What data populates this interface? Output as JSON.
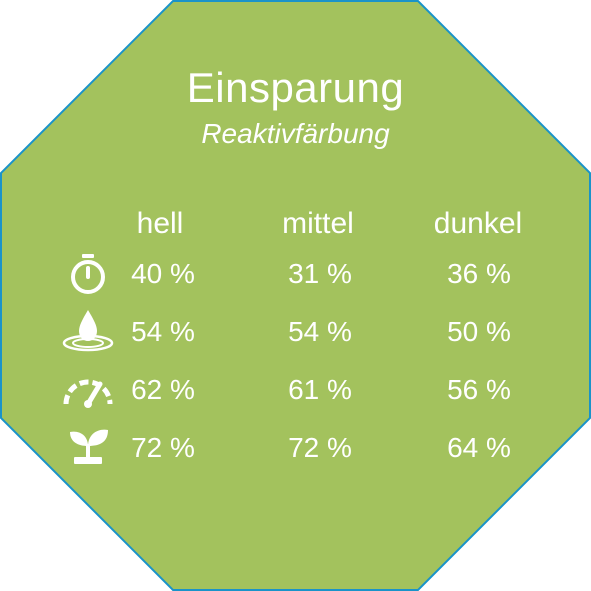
{
  "title": "Einsparung",
  "subtitle": "Reaktivfärbung",
  "columns": [
    "hell",
    "mittel",
    "dunkel"
  ],
  "rows": [
    {
      "icon": "stopwatch-icon",
      "values": [
        "40 %",
        "31 %",
        "36 %"
      ]
    },
    {
      "icon": "water-drop-icon",
      "values": [
        "54 %",
        "54 %",
        "50 %"
      ]
    },
    {
      "icon": "gauge-icon",
      "values": [
        "62 %",
        "61 %",
        "56 %"
      ]
    },
    {
      "icon": "seedling-icon",
      "values": [
        "72 %",
        "72 %",
        "64 %"
      ]
    }
  ],
  "colors": {
    "fill": "#a3c25d",
    "border": "#1a93c9",
    "text": "#ffffff"
  }
}
